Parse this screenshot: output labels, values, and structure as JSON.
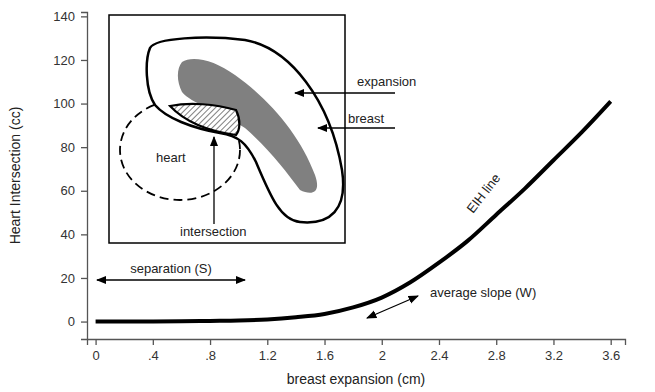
{
  "chart_data": {
    "type": "line",
    "x_label": "breast expansion (cm)",
    "y_label": "Heart Intersection (cc)",
    "x": [
      0,
      0.2,
      0.4,
      0.6,
      0.8,
      1.0,
      1.2,
      1.4,
      1.6,
      1.8,
      2.0,
      2.2,
      2.4,
      2.6,
      2.8,
      3.0,
      3.2,
      3.4,
      3.6
    ],
    "series": [
      {
        "name": "EIH line",
        "color": "#000000",
        "values": [
          0,
          0,
          0,
          0.1,
          0.3,
          0.5,
          1,
          2,
          3.5,
          6.5,
          11,
          18,
          27,
          37,
          49,
          61,
          74,
          87,
          101
        ]
      }
    ],
    "xlim": [
      -0.06,
      3.7
    ],
    "xticks": [
      0,
      {
        "value": 0.4,
        "label": ".4"
      },
      {
        "value": 0.8,
        "label": ".8"
      },
      1.2,
      1.6,
      2,
      2.4,
      2.8,
      3.2,
      3.6
    ],
    "ylim": [
      -8,
      142
    ],
    "yticks": [
      0,
      20,
      40,
      60,
      80,
      100,
      120,
      140
    ],
    "annotations": [
      "separation (S)",
      "average slope (W)"
    ],
    "inset_labels": [
      "expansion",
      "breast",
      "heart",
      "intersection"
    ]
  }
}
